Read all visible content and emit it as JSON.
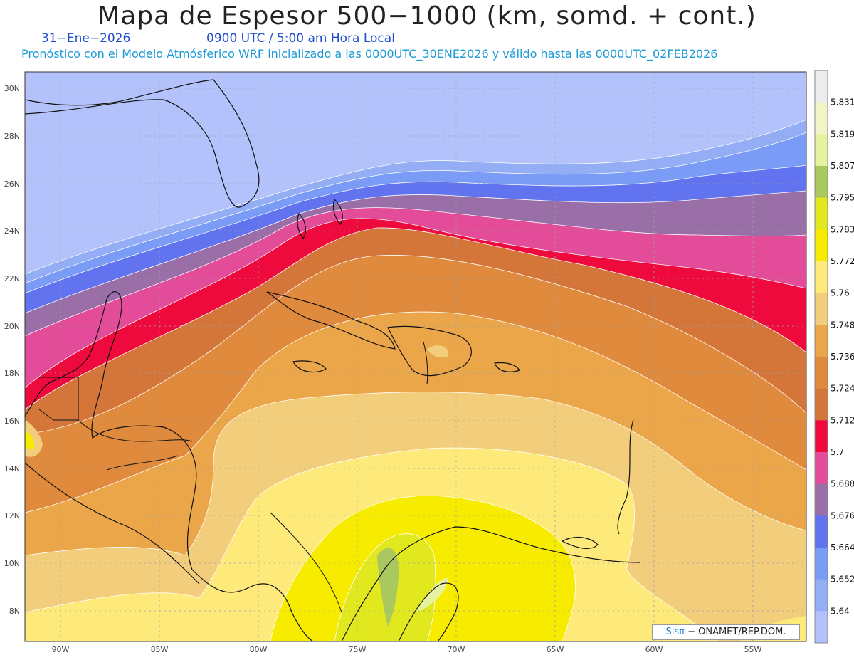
{
  "header": {
    "title": "Mapa de Espesor 500−1000 (km, somd. + cont.)",
    "date": "31−Ene−2026",
    "time": "0900 UTC / 5:00 am Hora Local",
    "model_info": "Pronóstico con el Modelo Atmósferico WRF inicializado a las 0000UTC_30ENE2026 y válido hasta las  0000UTC_02FEB2026"
  },
  "map": {
    "lat_ticks": [
      "30N",
      "28N",
      "26N",
      "24N",
      "22N",
      "20N",
      "18N",
      "16N",
      "14N",
      "12N",
      "10N",
      "8N"
    ],
    "lon_ticks": [
      "90W",
      "85W",
      "80W",
      "75W",
      "70W",
      "65W",
      "60W",
      "55W"
    ]
  },
  "colorbar": {
    "labels": [
      "5.831",
      "5.819",
      "5.807",
      "5.795",
      "5.783",
      "5.772",
      "5.76",
      "5.748",
      "5.736",
      "5.724",
      "5.712",
      "5.7",
      "5.688",
      "5.676",
      "5.664",
      "5.652",
      "5.64"
    ],
    "colors": [
      "#ececec",
      "#f3f3c8",
      "#e5f3a0",
      "#a9c95e",
      "#e1e81e",
      "#f7ec00",
      "#fdea7a",
      "#f2cd7c",
      "#eba649",
      "#df8a3c",
      "#d4763a",
      "#ee0a3c",
      "#e34c98",
      "#9a6fa8",
      "#6273f0",
      "#7b9cf6",
      "#94aef6",
      "#b4c2fb"
    ]
  },
  "credit": {
    "brand": "Sisπ",
    "text": " − ONAMET/REP.DOM."
  }
}
